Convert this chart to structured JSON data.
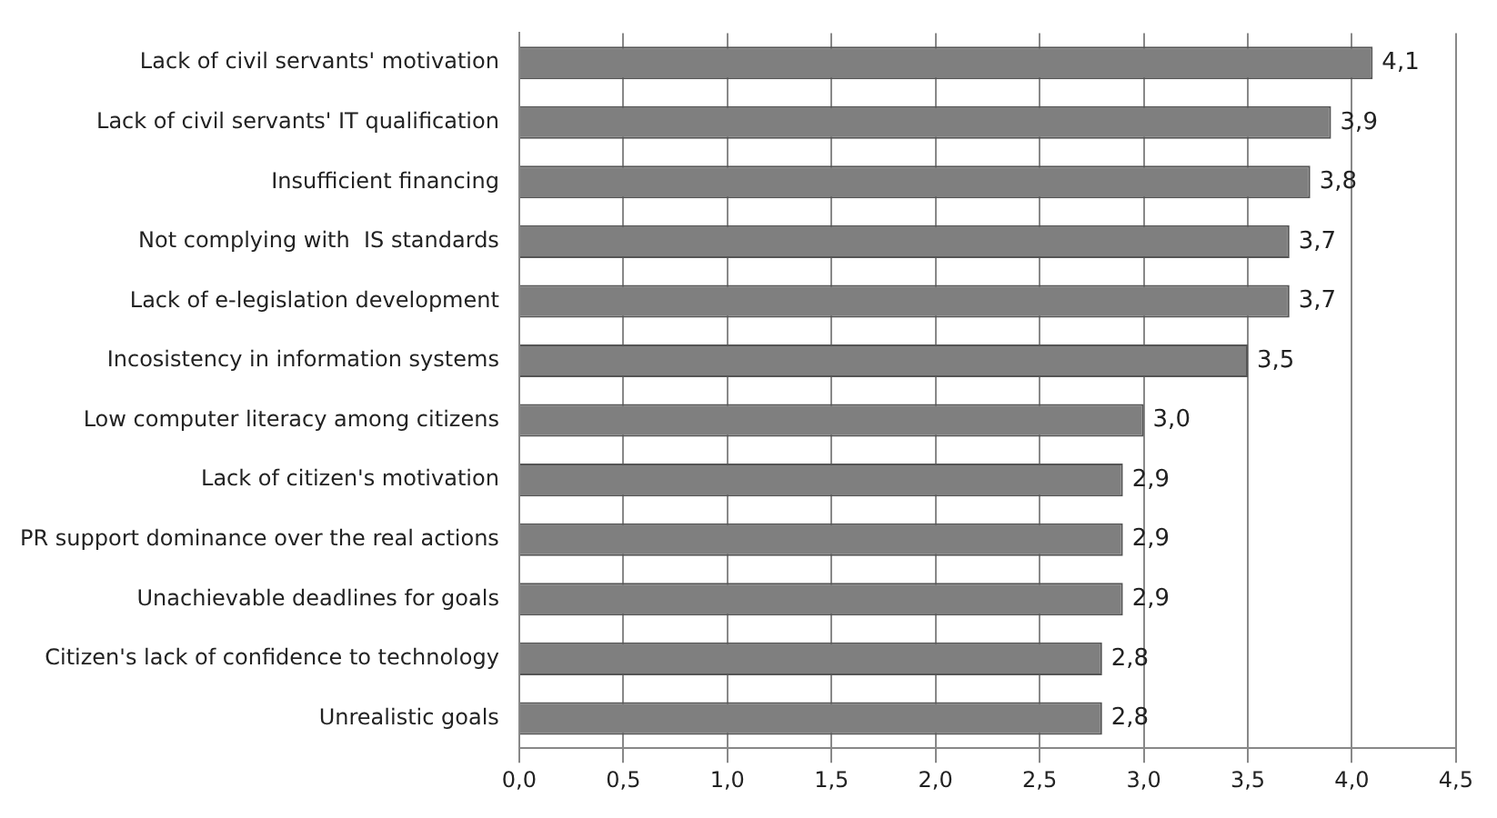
{
  "chart_data": {
    "type": "bar",
    "orientation": "horizontal",
    "categories": [
      "Lack of civil servants' motivation",
      "Lack of civil servants' IT qualification",
      "Insufficient financing",
      "Not complying with  IS standards",
      "Lack of e-legislation development",
      "Incosistency in information systems",
      "Low computer literacy among citizens",
      "Lack of citizen's motivation",
      "PR support dominance over the real actions",
      "Unachievable deadlines for goals",
      "Citizen's lack of confidence to technology",
      "Unrealistic goals"
    ],
    "values": [
      4.1,
      3.9,
      3.8,
      3.7,
      3.7,
      3.5,
      3.0,
      2.9,
      2.9,
      2.9,
      2.8,
      2.8
    ],
    "value_labels": [
      "4,1",
      "3,9",
      "3,8",
      "3,7",
      "3,7",
      "3,5",
      "3,0",
      "2,9",
      "2,9",
      "2,9",
      "2,8",
      "2,8"
    ],
    "color": "#7f7f7f",
    "xlim": [
      0,
      4.5
    ],
    "xticks": [
      {
        "value": 0,
        "label": "0,0"
      },
      {
        "value": 0.5,
        "label": "0,5"
      },
      {
        "value": 1,
        "label": "1,0"
      },
      {
        "value": 1.5,
        "label": "1,5"
      },
      {
        "value": 2,
        "label": "2,0"
      },
      {
        "value": 2.5,
        "label": "2,5"
      },
      {
        "value": 3,
        "label": "3,0"
      },
      {
        "value": 3.5,
        "label": "3,5"
      },
      {
        "value": 4,
        "label": "4,0"
      },
      {
        "value": 4.5,
        "label": "4,5"
      }
    ],
    "grid": "x"
  }
}
